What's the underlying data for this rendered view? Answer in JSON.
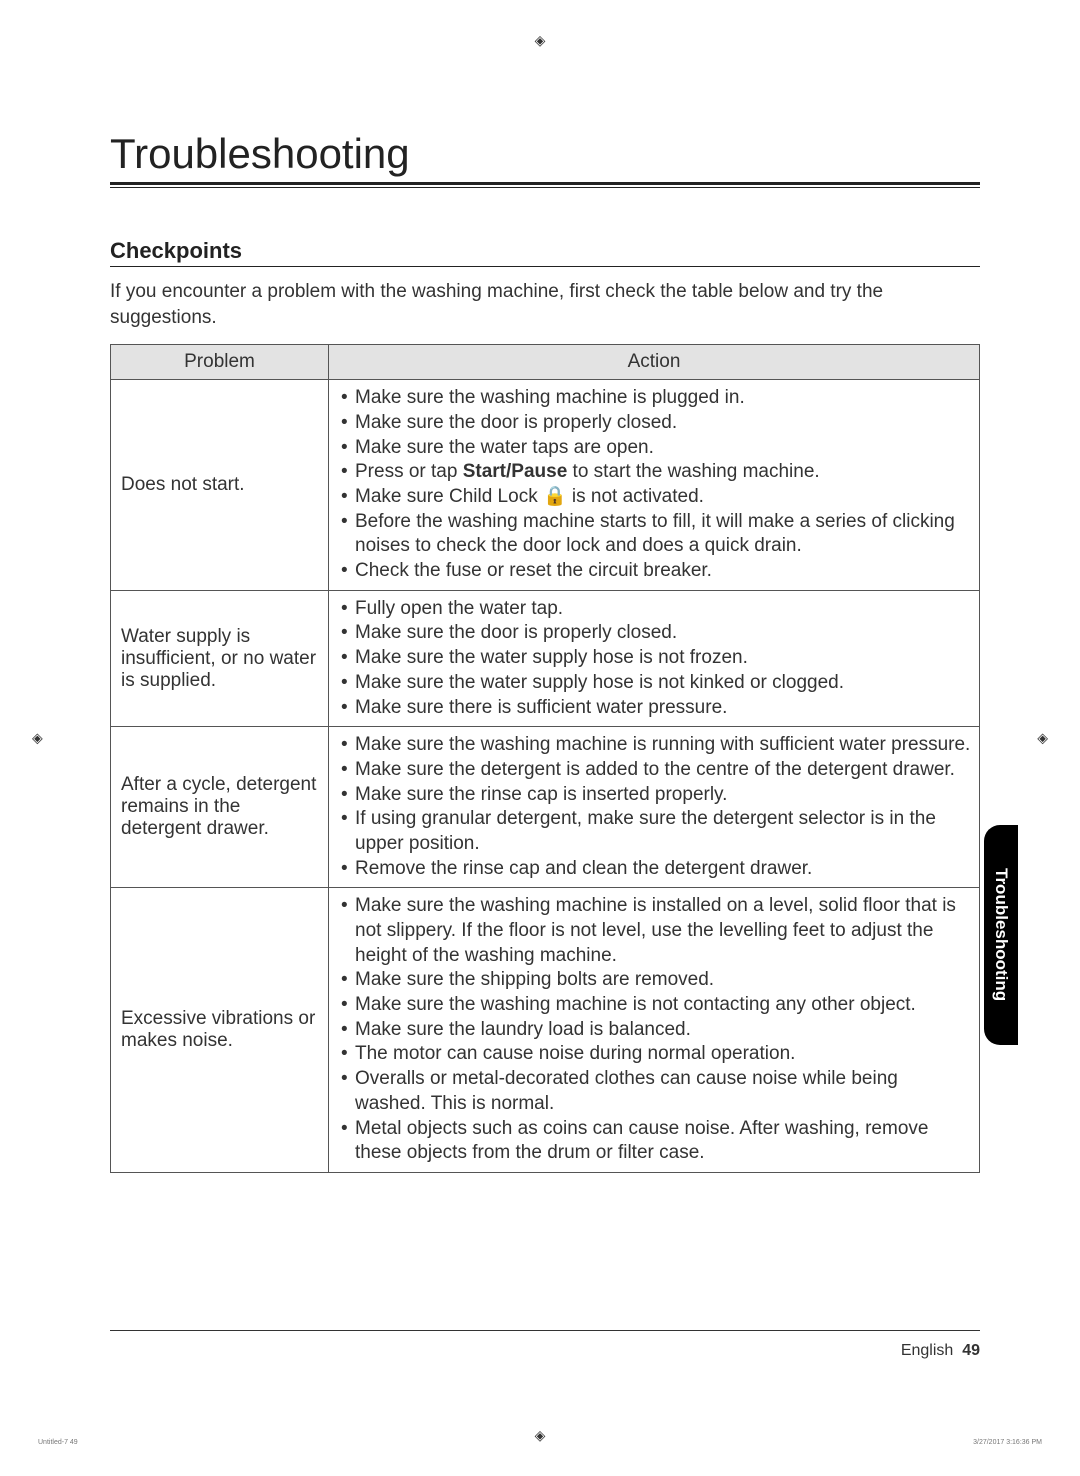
{
  "title": "Troubleshooting",
  "section_title": "Checkpoints",
  "intro": "If you encounter a problem with the washing machine, first check the table below and try the suggestions.",
  "table": {
    "headers": {
      "problem": "Problem",
      "action": "Action"
    },
    "rows": [
      {
        "problem": "Does not start.",
        "actions": [
          "Make sure the washing machine is plugged in.",
          "Make sure the door is properly closed.",
          "Make sure the water taps are open.",
          "Press or tap Start/Pause to start the washing machine.",
          "Make sure Child Lock 🔒 is not activated.",
          "Before the washing machine starts to fill, it will make a series of clicking noises to check the door lock and does a quick drain.",
          "Check the fuse or reset the circuit breaker."
        ]
      },
      {
        "problem": "Water supply is insufficient, or no water is supplied.",
        "actions": [
          "Fully open the water tap.",
          "Make sure the door is properly closed.",
          "Make sure the water supply hose is not frozen.",
          "Make sure the water supply hose is not kinked or clogged.",
          "Make sure there is sufficient water pressure."
        ]
      },
      {
        "problem": "After a cycle, detergent remains in the detergent drawer.",
        "actions": [
          "Make sure the washing machine is running with sufficient water pressure.",
          "Make sure the detergent is added to the centre of the detergent drawer.",
          "Make sure the rinse cap is inserted properly.",
          "If using granular detergent, make sure the detergent selector is in the upper position.",
          "Remove the rinse cap and clean the detergent drawer."
        ]
      },
      {
        "problem": "Excessive vibrations or makes noise.",
        "actions": [
          "Make sure the washing machine is installed on a level, solid floor that is not slippery. If the floor is not level, use the levelling feet to adjust the height of the washing machine.",
          "Make sure the shipping bolts are removed.",
          "Make sure the washing machine is not contacting any other object.",
          "Make sure the laundry load is balanced.",
          "The motor can cause noise during normal operation.",
          "Overalls or metal-decorated clothes can cause noise while being washed. This is normal.",
          "Metal objects such as coins can cause noise. After washing, remove these objects from the drum or filter case."
        ]
      }
    ]
  },
  "side_tab": "Troubleshooting",
  "footer": {
    "lang": "English",
    "page": "49"
  },
  "stamps": {
    "left": "Untitled-7   49",
    "right": "3/27/2017   3:16:36 PM"
  },
  "start_pause_bold": "Start/Pause"
}
